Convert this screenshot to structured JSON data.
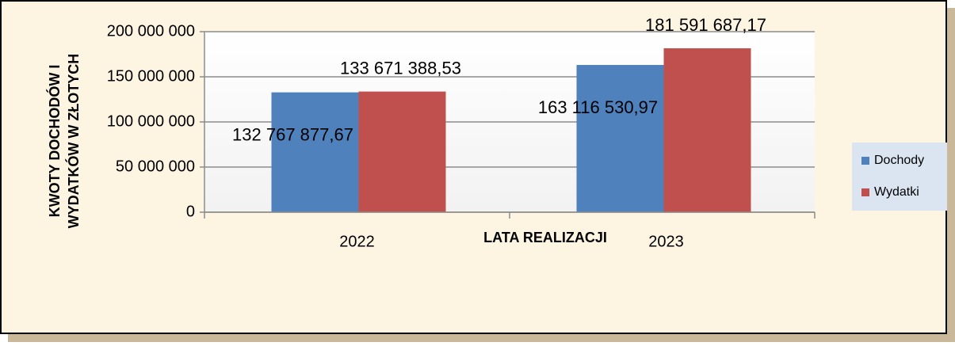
{
  "chart_data": {
    "type": "bar",
    "categories": [
      "2022",
      "2023"
    ],
    "series": [
      {
        "name": "Dochody",
        "color": "#4f81bd",
        "values": [
          132767877.67,
          163116530.97
        ],
        "value_labels": [
          "132 767 877,67",
          "163 116 530,97"
        ]
      },
      {
        "name": "Wydatki",
        "color": "#c0504d",
        "values": [
          133671388.53,
          181591687.17
        ],
        "value_labels": [
          "133 671 388,53",
          "181 591 687,17"
        ]
      }
    ],
    "xlabel": "LATA REALIZACJI",
    "ylabel": [
      "KWOTY DOCHODÓW I",
      "WYDATKÓW W ZŁOTYCH"
    ],
    "ylim": [
      0,
      200000000
    ],
    "yticks": [
      0,
      {
        "value": 50000000,
        "label": "50 000 000"
      },
      {
        "value": 100000000,
        "label": "100 000 000"
      },
      {
        "value": 150000000,
        "label": "150 000 000"
      },
      {
        "value": 200000000,
        "label": "200 000 000"
      }
    ],
    "grid": true,
    "legend": "right"
  }
}
